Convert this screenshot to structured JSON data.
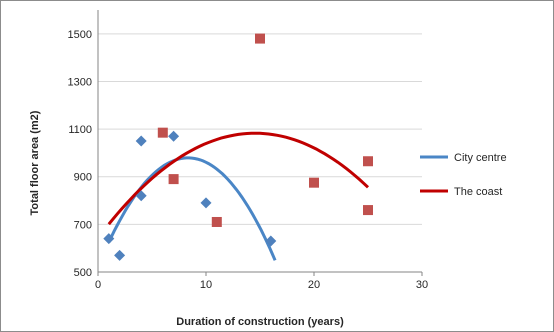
{
  "chart_data": {
    "type": "scatter",
    "title": "",
    "xlabel": "Duration of construction (years)",
    "ylabel": "Total floor area  (m2)",
    "xlim": [
      0,
      30
    ],
    "ylim": [
      500,
      1600
    ],
    "x_ticks": [
      "0",
      "10",
      "20",
      "30"
    ],
    "y_ticks": [
      "500",
      "700",
      "900",
      "1100",
      "1300",
      "1500"
    ],
    "grid": "horizontal",
    "legend_position": "right",
    "series": [
      {
        "name": "City centre",
        "marker": "diamond",
        "color": "#4f81bd",
        "trend_color": "#4a86c6",
        "points": [
          {
            "x": 1,
            "y": 640
          },
          {
            "x": 2,
            "y": 570
          },
          {
            "x": 4,
            "y": 1050
          },
          {
            "x": 4,
            "y": 820
          },
          {
            "x": 7,
            "y": 1070
          },
          {
            "x": 10,
            "y": 790
          },
          {
            "x": 16,
            "y": 630
          }
        ],
        "trendline": {
          "type": "polynomial-2",
          "x_range": [
            1,
            16.4
          ]
        }
      },
      {
        "name": "The coast",
        "marker": "square",
        "color": "#c0504d",
        "trend_color": "#c00000",
        "points": [
          {
            "x": 6,
            "y": 1085
          },
          {
            "x": 7,
            "y": 890
          },
          {
            "x": 11,
            "y": 710
          },
          {
            "x": 15,
            "y": 1480
          },
          {
            "x": 20,
            "y": 875
          },
          {
            "x": 25,
            "y": 965
          },
          {
            "x": 25,
            "y": 760
          }
        ],
        "trendline": {
          "type": "polynomial-2",
          "x_range": [
            1,
            25
          ]
        }
      }
    ]
  }
}
